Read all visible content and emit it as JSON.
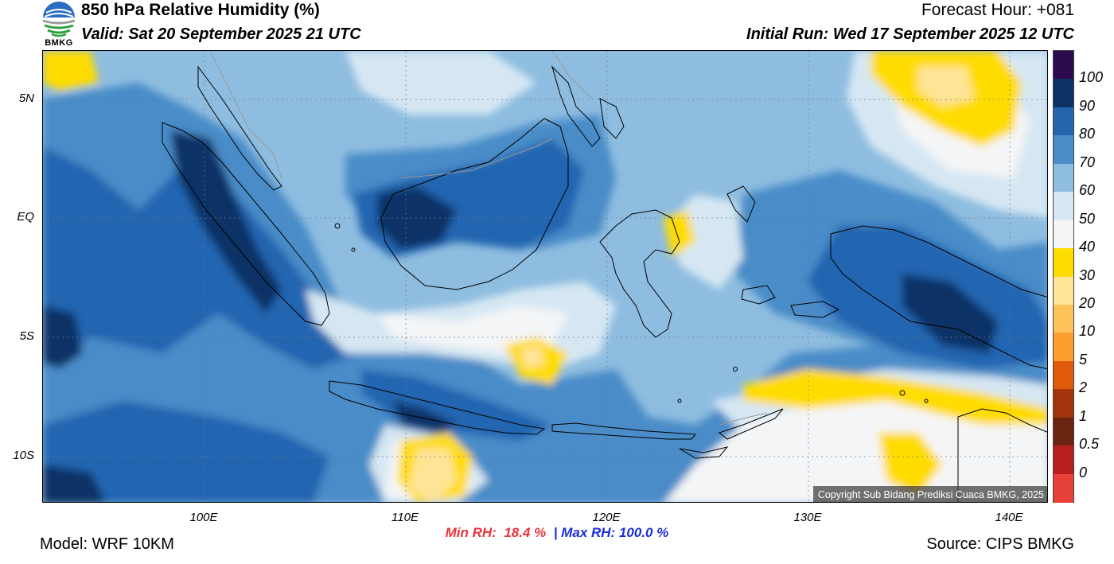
{
  "header": {
    "title": "850 hPa Relative Humidity (%)",
    "valid": "Valid: Sat 20 September 2025 21 UTC",
    "forecast_hour": "Forecast Hour: +081",
    "initial_run": "Initial Run: Wed 17 September 2025 12 UTC"
  },
  "logo": {
    "text": "BMKG",
    "icon": "bmkg-logo-icon"
  },
  "axes": {
    "lat_labels": [
      "5N",
      "EQ",
      "5S",
      "10S"
    ],
    "lon_labels": [
      "100E",
      "110E",
      "120E",
      "130E",
      "140E"
    ]
  },
  "colorbar": {
    "labels": [
      "100",
      "90",
      "80",
      "70",
      "60",
      "50",
      "40",
      "30",
      "20",
      "10",
      "5",
      "2",
      "1",
      "0.5",
      "0"
    ],
    "colors": [
      "#2d0a4e",
      "#0d3266",
      "#2465b0",
      "#4a8cc8",
      "#8ebde0",
      "#d6e7f3",
      "#f4f5f6",
      "#ffdc00",
      "#ffe497",
      "#fec35a",
      "#fd9d2f",
      "#e05a0b",
      "#a3340d",
      "#6a2410",
      "#b81e1e",
      "#e8413a"
    ]
  },
  "map": {
    "copyright": "Copyright Sub Bidang Prediksi Cuaca BMKG, 2025"
  },
  "stats": {
    "min_label": "Min RH:",
    "min_value": "18.4 %",
    "separator": "|",
    "max_label": "Max RH:",
    "max_value": "100.0 %"
  },
  "footer": {
    "model": "Model: WRF 10KM",
    "source": "Source: CIPS BMKG"
  }
}
